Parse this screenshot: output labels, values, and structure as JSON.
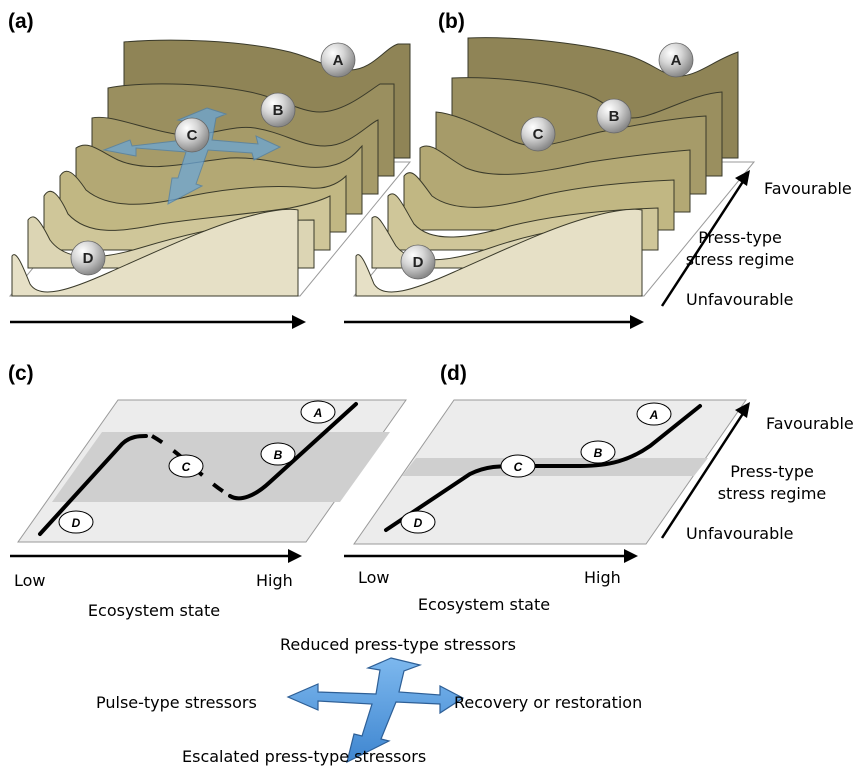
{
  "panels": {
    "a": "(a)",
    "b": "(b)",
    "c": "(c)",
    "d": "(d)"
  },
  "states": {
    "A": "A",
    "B": "B",
    "C": "C",
    "D": "D"
  },
  "axis": {
    "favourable": "Favourable",
    "press_line1": "Press-type",
    "press_line2": "stress regime",
    "unfavourable": "Unfavourable",
    "low": "Low",
    "high": "High",
    "x_label": "Ecosystem state"
  },
  "legend": {
    "top": "Reduced press-type stressors",
    "left": "Pulse-type stressors",
    "right": "Recovery or restoration",
    "bottom": "Escalated press-type stressors"
  },
  "colors": {
    "sheet_back": "#8f8456",
    "sheet_front": "#e6e0c6",
    "arrow_fill": "#5b9fe0",
    "band": "#cfcfcf",
    "plane": "#ececec"
  }
}
